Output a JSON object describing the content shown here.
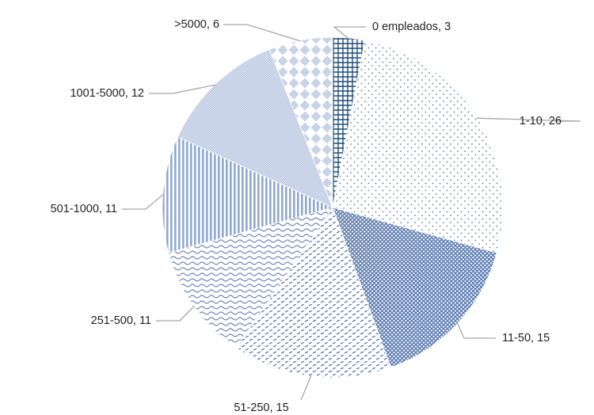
{
  "chart_data": {
    "type": "pie",
    "title": "",
    "start_angle_deg": 0,
    "direction": "clockwise",
    "colors": {
      "dark": "#1f4e79",
      "mid": "#5b7bb1",
      "light": "#8fa8d0",
      "lighter": "#b4c4e0",
      "pale": "#c9d3e8"
    },
    "slices": [
      {
        "category": "0 empleados",
        "value": 3,
        "label": "0 empleados, 3",
        "pattern": "grid"
      },
      {
        "category": "1-10",
        "value": 26,
        "label": "1-10, 26",
        "pattern": "dots"
      },
      {
        "category": "11-50",
        "value": 15,
        "label": "11-50, 15",
        "pattern": "lattice"
      },
      {
        "category": "51-250",
        "value": 15,
        "label": "51-250, 15",
        "pattern": "dashes"
      },
      {
        "category": "251-500",
        "value": 11,
        "label": "251-500, 11",
        "pattern": "waves"
      },
      {
        "category": "501-1000",
        "value": 11,
        "label": "501-1000, 11",
        "pattern": "vstripes"
      },
      {
        "category": "1001-5000",
        "value": 12,
        "label": "1001-5000, 12",
        "pattern": "fine"
      },
      {
        "category": ">5000",
        "value": 6,
        "label": ">5000, 6",
        "pattern": "diamonds"
      }
    ]
  }
}
